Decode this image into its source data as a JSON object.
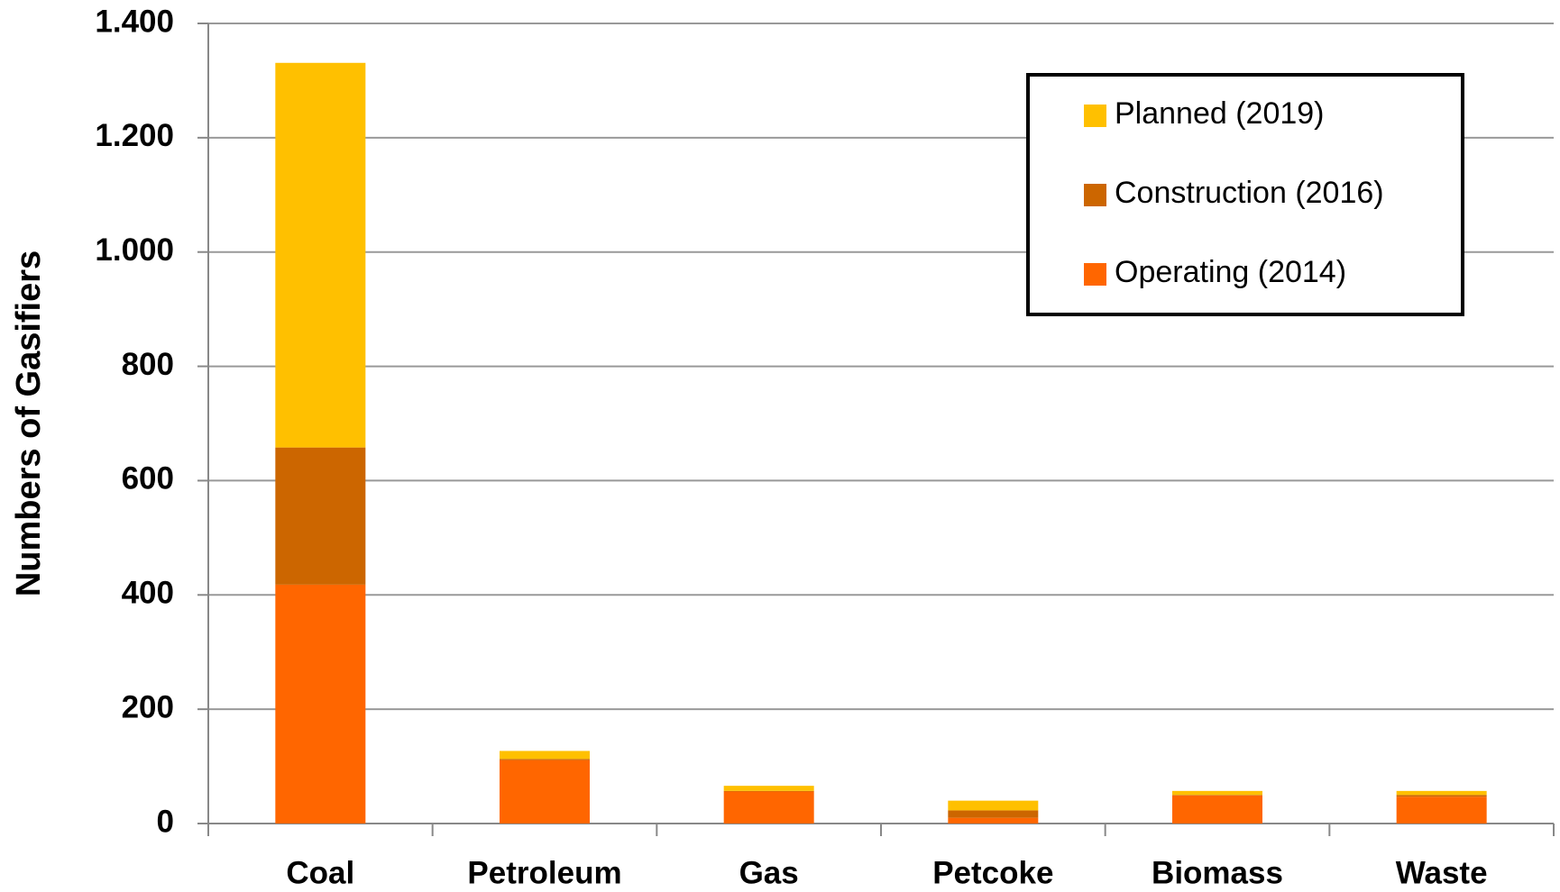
{
  "chart_data": {
    "type": "stacked_bar",
    "y_label": "Numbers of Gasifiers",
    "categories": [
      "Coal",
      "Petroleum",
      "Gas",
      "Petcoke",
      "Biomass",
      "Waste"
    ],
    "series": [
      {
        "name": "Operating (2014)",
        "color": "#ff6600",
        "values": [
          418,
          111,
          56,
          10,
          49,
          47
        ]
      },
      {
        "name": "Construction (2016)",
        "color": "#cc6600",
        "values": [
          240,
          2,
          1,
          13,
          1,
          3
        ]
      },
      {
        "name": "Planned (2019)",
        "color": "#ffc000",
        "values": [
          673,
          14,
          9,
          17,
          7,
          7
        ]
      }
    ],
    "ylim": [
      0,
      1400
    ],
    "yticks": [
      0,
      200,
      400,
      600,
      800,
      {
        "value": 1000,
        "label": "1.000"
      },
      {
        "value": 1200,
        "label": "1.200"
      },
      {
        "value": 1400,
        "label": "1.400"
      }
    ],
    "grid": true,
    "legend": "upper right"
  }
}
